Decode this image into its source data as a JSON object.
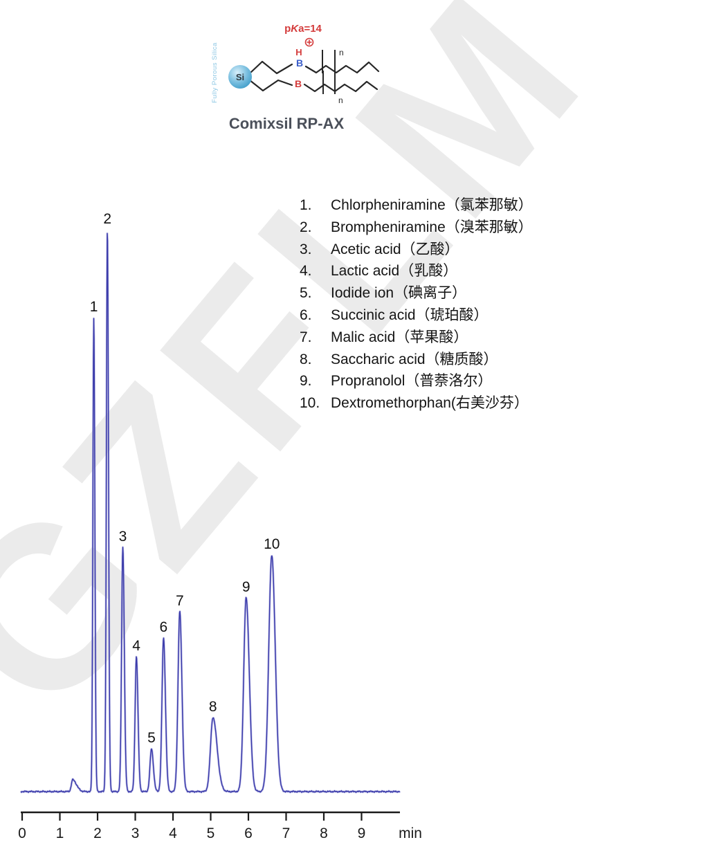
{
  "watermark": {
    "text": "GZFLM"
  },
  "structure": {
    "pka_prefix": "p",
    "pka_k": "K",
    "pka_suffix": "a=14",
    "h_label": "H",
    "b_upper": "B",
    "b_lower": "B",
    "n_upper": "n",
    "n_lower": "n",
    "si_label": "Si",
    "silica_caption": "Fully Porous Silica",
    "title": "Comixsil RP-AX",
    "colors": {
      "red": "#d43b3b",
      "blue": "#3b5ec9",
      "bond": "#262626",
      "ball_light": "#d8effa",
      "ball_mid": "#7cc0e0",
      "ball_dark": "#3e9cc8",
      "caption": "#8cc7e4",
      "title": "#4b505a"
    }
  },
  "legend": {
    "items": [
      {
        "num": "1.",
        "text": "Chlorpheniramine（氯苯那敏）"
      },
      {
        "num": "2.",
        "text": "Brompheniramine（溴苯那敏）"
      },
      {
        "num": "3.",
        "text": "Acetic acid（乙酸）"
      },
      {
        "num": "4.",
        "text": "Lactic acid（乳酸）"
      },
      {
        "num": "5.",
        "text": "Iodide ion（碘离子）"
      },
      {
        "num": "6.",
        "text": "Succinic acid（琥珀酸）"
      },
      {
        "num": "7.",
        "text": "Malic acid（苹果酸）"
      },
      {
        "num": "8.",
        "text": "Saccharic acid（糖质酸）"
      },
      {
        "num": "9.",
        "text": "Propranolol（普萘洛尔）"
      },
      {
        "num": "10.",
        "text": "Dextromethorphan(右美沙芬）"
      }
    ]
  },
  "chart_data": {
    "type": "line",
    "title": "",
    "xlabel": "min",
    "ylabel": "",
    "xlim": [
      0,
      10
    ],
    "x_ticks": [
      0,
      1,
      2,
      3,
      4,
      5,
      6,
      7,
      8,
      9
    ],
    "grid": false,
    "trace_color": "#3b3baa",
    "trace_halo_color": "#9595d8",
    "axis_color": "#1a1a1a",
    "baseline_rel": 0.0,
    "void_peak": {
      "time": 1.34,
      "height_rel": 0.021,
      "sigma_left": 0.035,
      "sigma_right": 0.1
    },
    "peaks": [
      {
        "label": "1",
        "time": 1.9,
        "height_rel": 0.843,
        "sigma_left": 0.024,
        "sigma_right": 0.028
      },
      {
        "label": "2",
        "time": 2.26,
        "height_rel": 1.0,
        "sigma_left": 0.026,
        "sigma_right": 0.03
      },
      {
        "label": "3",
        "time": 2.67,
        "height_rel": 0.435,
        "sigma_left": 0.033,
        "sigma_right": 0.039
      },
      {
        "label": "4",
        "time": 3.03,
        "height_rel": 0.24,
        "sigma_left": 0.035,
        "sigma_right": 0.042
      },
      {
        "label": "5",
        "time": 3.43,
        "height_rel": 0.076,
        "sigma_left": 0.04,
        "sigma_right": 0.05
      },
      {
        "label": "6",
        "time": 3.75,
        "height_rel": 0.273,
        "sigma_left": 0.042,
        "sigma_right": 0.05
      },
      {
        "label": "7",
        "time": 4.18,
        "height_rel": 0.32,
        "sigma_left": 0.047,
        "sigma_right": 0.057
      },
      {
        "label": "8",
        "time": 5.06,
        "height_rel": 0.132,
        "sigma_left": 0.065,
        "sigma_right": 0.11
      },
      {
        "label": "9",
        "time": 5.94,
        "height_rel": 0.345,
        "sigma_left": 0.065,
        "sigma_right": 0.085
      },
      {
        "label": "10",
        "time": 6.62,
        "height_rel": 0.421,
        "sigma_left": 0.08,
        "sigma_right": 0.092
      }
    ]
  }
}
